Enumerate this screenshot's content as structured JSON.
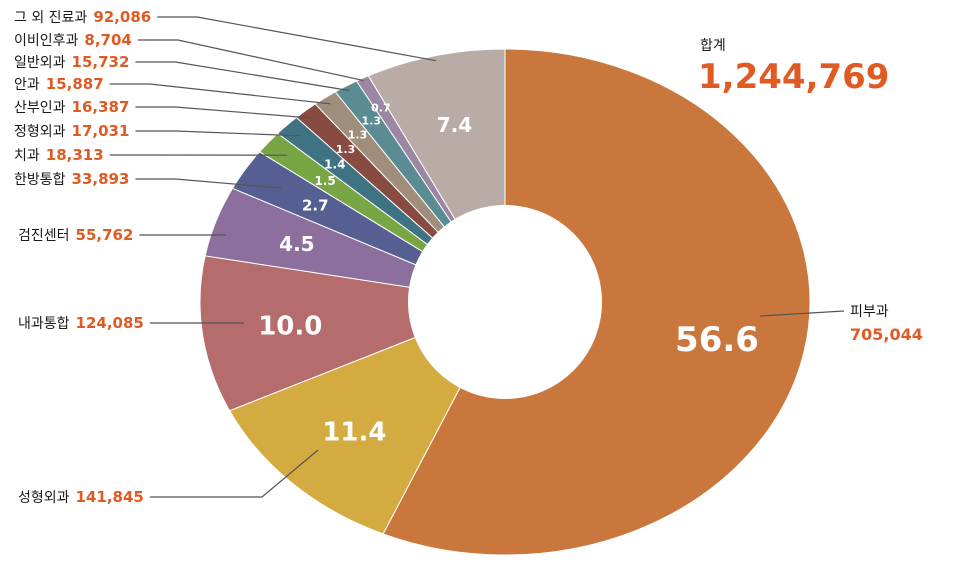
{
  "chart_data": {
    "type": "pie",
    "donut": true,
    "total_label": "합계",
    "total_value": "1,244,769",
    "slices": [
      {
        "name": "피부과",
        "value": "705,044",
        "pct": 56.6,
        "pct_label": "56.6",
        "color": "#c9773d"
      },
      {
        "name": "성형외과",
        "value": "141,845",
        "pct": 11.4,
        "pct_label": "11.4",
        "color": "#d4ab40"
      },
      {
        "name": "내과통합",
        "value": "124,085",
        "pct": 10.0,
        "pct_label": "10.0",
        "color": "#b46c6c"
      },
      {
        "name": "검진센터",
        "value": "55,762",
        "pct": 4.5,
        "pct_label": "4.5",
        "color": "#8c6f9c"
      },
      {
        "name": "한방통합",
        "value": "33,893",
        "pct": 2.7,
        "pct_label": "2.7",
        "color": "#565f91"
      },
      {
        "name": "치과",
        "value": "18,313",
        "pct": 1.5,
        "pct_label": "1.5",
        "color": "#78a645"
      },
      {
        "name": "정형외과",
        "value": "17,031",
        "pct": 1.4,
        "pct_label": "1.4",
        "color": "#3f7384"
      },
      {
        "name": "산부인과",
        "value": "16,387",
        "pct": 1.3,
        "pct_label": "1.3",
        "color": "#874b42"
      },
      {
        "name": "안과",
        "value": "15,887",
        "pct": 1.3,
        "pct_label": "1.3",
        "color": "#a08e7c"
      },
      {
        "name": "일반외과",
        "value": "15,732",
        "pct": 1.3,
        "pct_label": "1.3",
        "color": "#5b8c93"
      },
      {
        "name": "이비인후과",
        "value": "8,704",
        "pct": 0.7,
        "pct_label": "0.7",
        "color": "#9b86a4"
      },
      {
        "name": "그 외 진료과",
        "value": "92,086",
        "pct": 7.4,
        "pct_label": "7.4",
        "color": "#b9aca6"
      }
    ]
  }
}
